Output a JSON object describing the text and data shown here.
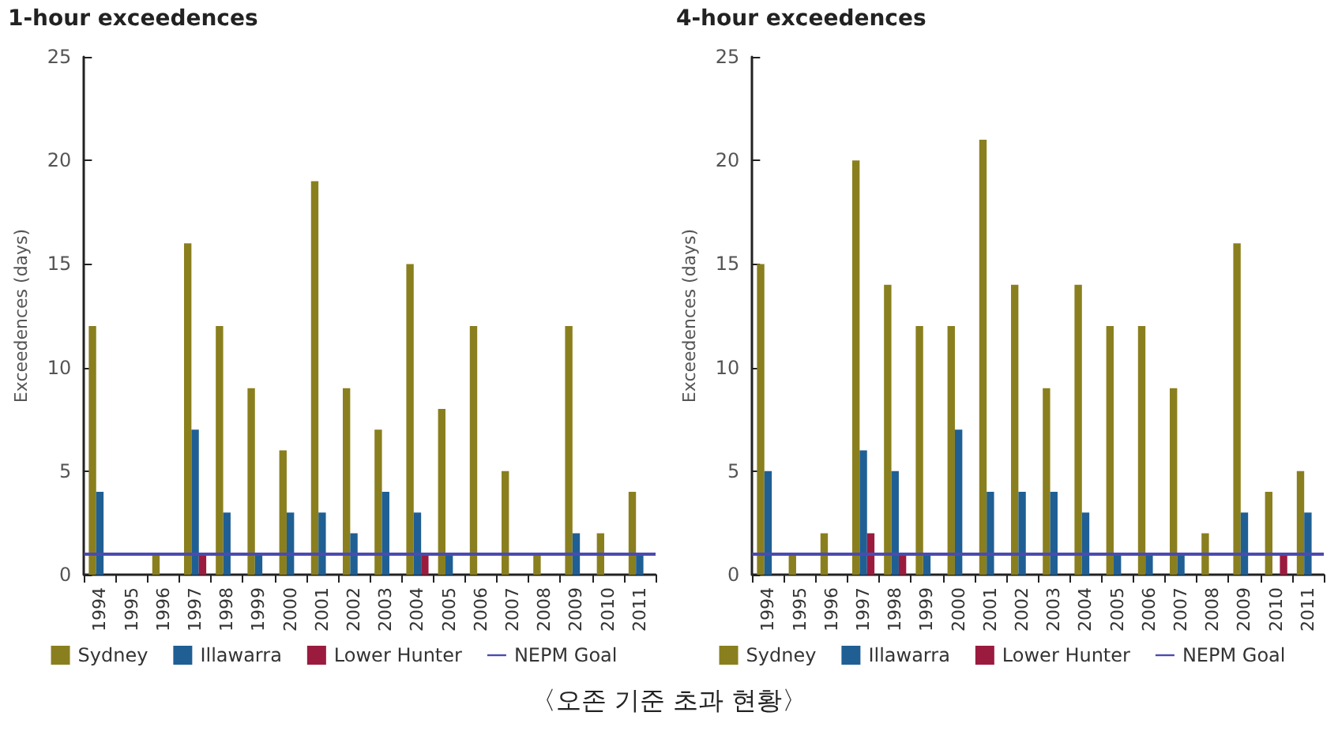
{
  "chart_data": [
    {
      "type": "bar",
      "title": "1-hour exceedences",
      "ylabel": "Exceedences (days)",
      "categories": [
        "1994",
        "1995",
        "1996",
        "1997",
        "1998",
        "1999",
        "2000",
        "2001",
        "2002",
        "2003",
        "2004",
        "2005",
        "2006",
        "2007",
        "2008",
        "2009",
        "2010",
        "2011"
      ],
      "series": [
        {
          "name": "Sydney",
          "color": "#8a7f1e",
          "values": [
            12,
            0,
            1,
            16,
            12,
            9,
            6,
            19,
            9,
            7,
            15,
            8,
            12,
            5,
            1,
            12,
            2,
            4
          ]
        },
        {
          "name": "Illawarra",
          "color": "#1f5f94",
          "values": [
            4,
            0,
            0,
            7,
            3,
            1,
            3,
            3,
            2,
            4,
            3,
            1,
            0,
            0,
            0,
            2,
            0,
            1
          ]
        },
        {
          "name": "Lower Hunter",
          "color": "#9b1b3f",
          "values": [
            0,
            0,
            0,
            1,
            0,
            0,
            0,
            0,
            0,
            0,
            1,
            0,
            0,
            0,
            0,
            0,
            0,
            0
          ]
        }
      ],
      "ylim": [
        0,
        25
      ],
      "yticks": [
        0,
        5,
        10,
        15,
        20,
        25
      ],
      "grid": false,
      "legend": "bottom",
      "ref_lines": [
        {
          "axis": "y",
          "value": 1,
          "label": "NEPM Goal",
          "color": "#4b4bb0"
        }
      ]
    },
    {
      "type": "bar",
      "title": "4-hour exceedences",
      "ylabel": "Exceedences (days)",
      "categories": [
        "1994",
        "1995",
        "1996",
        "1997",
        "1998",
        "1999",
        "2000",
        "2001",
        "2002",
        "2003",
        "2004",
        "2005",
        "2006",
        "2007",
        "2008",
        "2009",
        "2010",
        "2011"
      ],
      "series": [
        {
          "name": "Sydney",
          "color": "#8a7f1e",
          "values": [
            15,
            1,
            2,
            20,
            14,
            12,
            12,
            21,
            14,
            9,
            14,
            12,
            12,
            9,
            2,
            16,
            4,
            5
          ]
        },
        {
          "name": "Illawarra",
          "color": "#1f5f94",
          "values": [
            5,
            0,
            0,
            6,
            5,
            1,
            7,
            4,
            4,
            4,
            3,
            1,
            1,
            1,
            0,
            3,
            0,
            3
          ]
        },
        {
          "name": "Lower Hunter",
          "color": "#9b1b3f",
          "values": [
            0,
            0,
            0,
            2,
            1,
            0,
            0,
            0,
            0,
            0,
            0,
            0,
            0,
            0,
            0,
            0,
            1,
            0
          ]
        }
      ],
      "ylim": [
        0,
        25
      ],
      "yticks": [
        0,
        5,
        10,
        15,
        20,
        25
      ],
      "grid": false,
      "legend": "bottom",
      "ref_lines": [
        {
          "axis": "y",
          "value": 1,
          "label": "NEPM Goal",
          "color": "#4b4bb0"
        }
      ],
      "annotations": [
        "〈오존 기준 초과 현황〉"
      ]
    }
  ]
}
